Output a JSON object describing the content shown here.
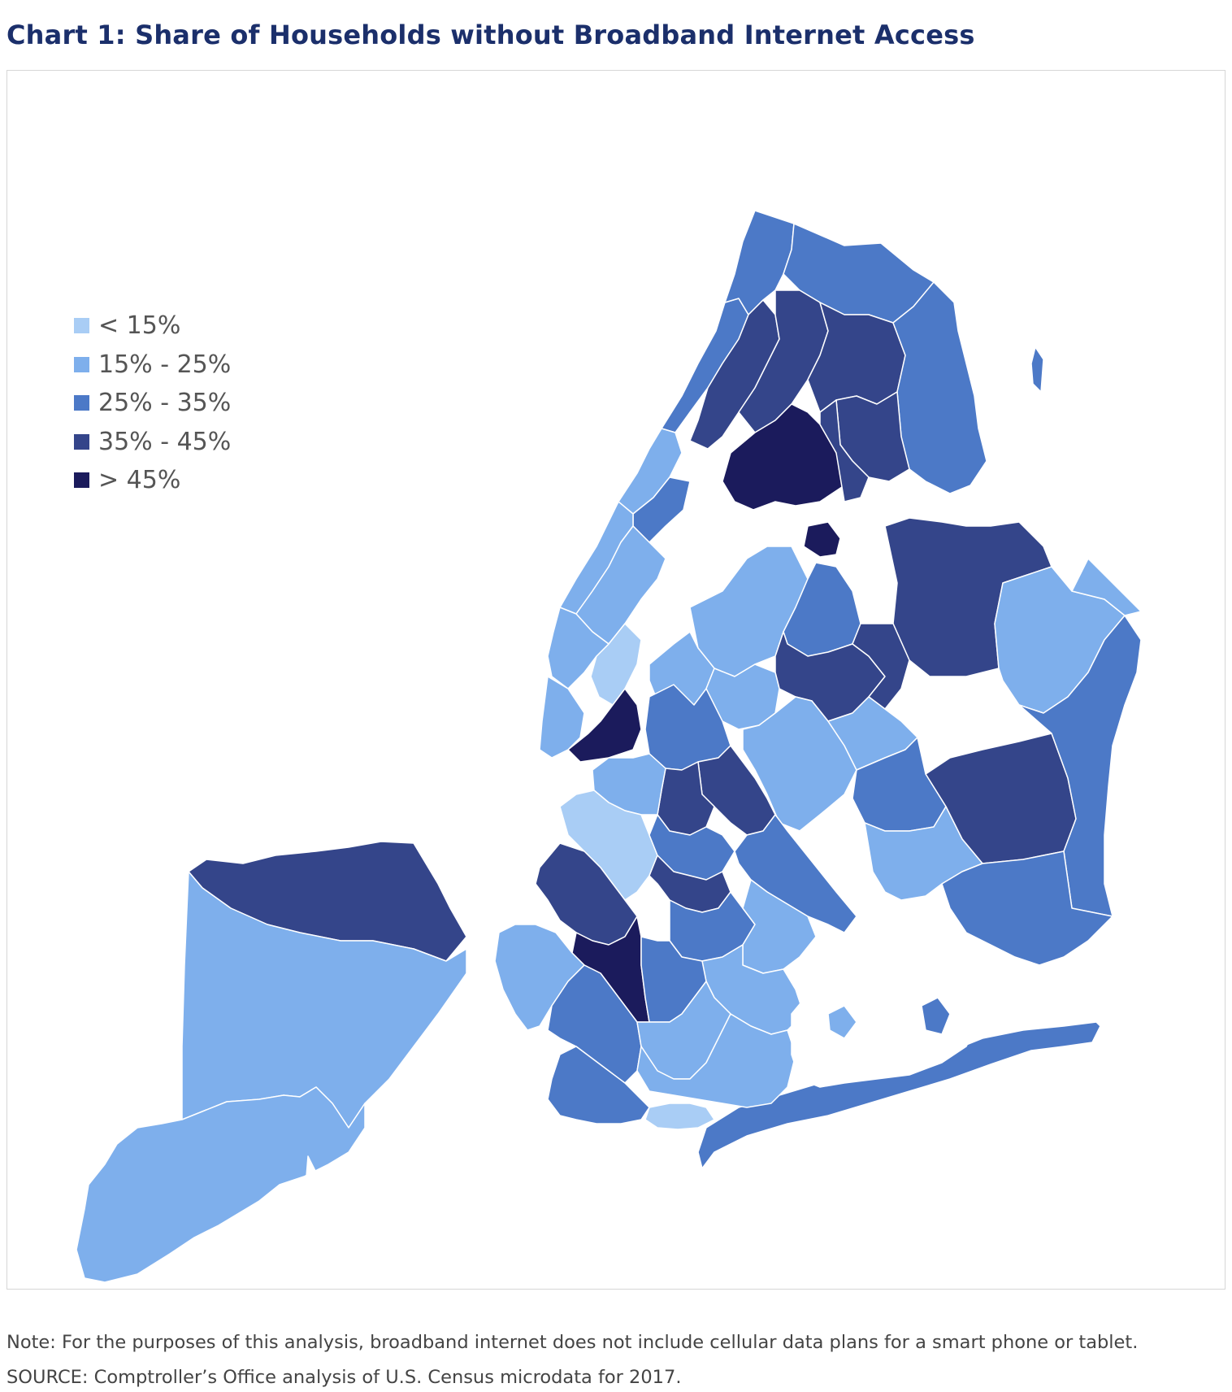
{
  "title": "Chart 1: Share of Households without Broadband Internet Access",
  "legend": [
    {
      "label": "< 15%",
      "color": "#a9cdf5"
    },
    {
      "label": "15% - 25%",
      "color": "#7eafec"
    },
    {
      "label": "25% - 35%",
      "color": "#4c79c7"
    },
    {
      "label": "35% - 45%",
      "color": "#34458a"
    },
    {
      "label": "> 45%",
      "color": "#1b1b5c"
    }
  ],
  "note": "Note: For the purposes of this analysis, broadband internet does not include cellular data plans for a smart phone or tablet.",
  "source": "SOURCE: Comptroller’s Office analysis of U.S. Census microdata for 2017."
}
